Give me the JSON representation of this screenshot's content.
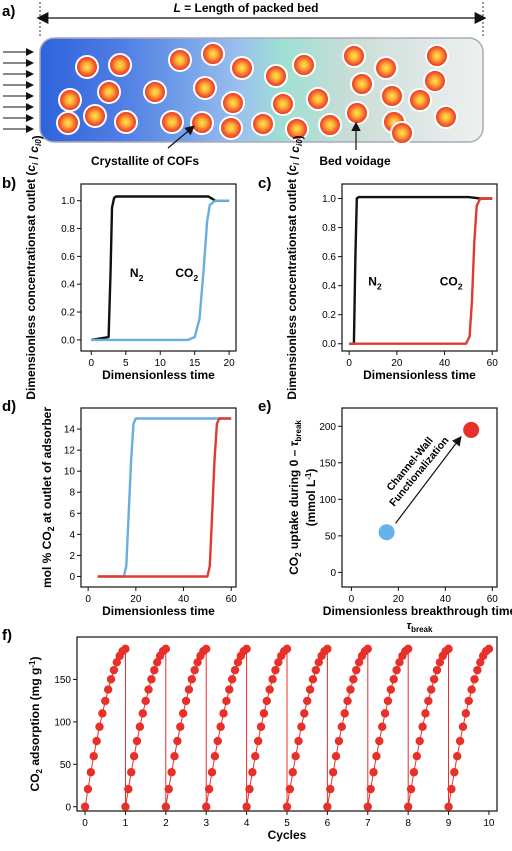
{
  "panel_labels": {
    "a": "a)",
    "b": "b)",
    "c": "c)",
    "d": "d)",
    "e": "e)",
    "f": "f)"
  },
  "bed": {
    "length_symbol": "L",
    "length_text": " = Length of packed bed",
    "crystallite_label": "Crystallite of COFs",
    "voidage_label": "Bed voidage"
  },
  "colors": {
    "black_curve": "#111111",
    "blue_curve": "#6aaee0",
    "red_curve": "#e03a33",
    "marker_red": "#e8302a",
    "marker_blue": "#66b3ea"
  },
  "chart_data": [
    {
      "id": "b",
      "type": "line",
      "ylabel": "Dimensionless concentrations at outlet (c_i / c_i0)",
      "xlabel": "Dimensionless time",
      "xticks": [
        "0",
        "5",
        "10",
        "15",
        "20"
      ],
      "yticks": [
        "0.0",
        "0.2",
        "0.4",
        "0.6",
        "0.8",
        "1.0"
      ],
      "xlim": [
        -1.5,
        21
      ],
      "ylim": [
        -0.08,
        1.12
      ],
      "series": [
        {
          "name": "N₂",
          "color": "#111111",
          "x": [
            0,
            2.5,
            2.8,
            3.0,
            3.3,
            3.6,
            5,
            15,
            17,
            18,
            19,
            20
          ],
          "y": [
            0,
            0.02,
            0.5,
            0.95,
            1.02,
            1.03,
            1.03,
            1.03,
            1.03,
            1.0,
            1.0,
            1.0
          ]
        },
        {
          "name": "CO₂",
          "color": "#6aaee0",
          "x": [
            0,
            14,
            15,
            15.7,
            16.3,
            16.8,
            17.2,
            18,
            20
          ],
          "y": [
            0,
            0,
            0.02,
            0.15,
            0.5,
            0.85,
            0.97,
            1.0,
            1.0
          ]
        }
      ],
      "annotations": [
        {
          "sub": "N",
          "subscript": "2",
          "x": 5.6,
          "y": 0.45
        },
        {
          "sub": "CO",
          "subscript": "2",
          "x": 12.2,
          "y": 0.45
        }
      ]
    },
    {
      "id": "c",
      "type": "line",
      "ylabel": "Dimensionless concentrations at outlet (c_i / c_i0)",
      "xlabel": "Dimensionless time",
      "xticks": [
        "0",
        "20",
        "40",
        "60"
      ],
      "yticks": [
        "0.0",
        "0.2",
        "0.4",
        "0.6",
        "0.8",
        "1.0"
      ],
      "xlim": [
        -3,
        62
      ],
      "ylim": [
        -0.05,
        1.1
      ],
      "series": [
        {
          "name": "N₂",
          "color": "#111111",
          "x": [
            0,
            2,
            2.6,
            3.2,
            4,
            10,
            30,
            50,
            55,
            60
          ],
          "y": [
            0,
            0,
            0.6,
            1.0,
            1.01,
            1.01,
            1.01,
            1.01,
            1.0,
            1.0
          ]
        },
        {
          "name": "CO₂",
          "color": "#e03a33",
          "x": [
            0,
            49,
            50.5,
            51.5,
            52.5,
            53.5,
            55,
            60
          ],
          "y": [
            0,
            0,
            0.05,
            0.3,
            0.7,
            0.95,
            1.0,
            1.0
          ]
        }
      ],
      "annotations": [
        {
          "sub": "N",
          "subscript": "2",
          "x": 8,
          "y": 0.4
        },
        {
          "sub": "CO",
          "subscript": "2",
          "x": 38,
          "y": 0.4
        }
      ]
    },
    {
      "id": "d",
      "type": "line",
      "ylabel": "mol % CO2 at outlet of adsorber",
      "xlabel": "Dimensionless time",
      "xticks": [
        "0",
        "20",
        "40",
        "60"
      ],
      "yticks": [
        "0",
        "2",
        "4",
        "6",
        "8",
        "10",
        "12",
        "14"
      ],
      "xlim": [
        -3,
        62
      ],
      "ylim": [
        -1,
        16
      ],
      "series": [
        {
          "color": "#6aaee0",
          "x": [
            4,
            15,
            16,
            17,
            18,
            19,
            20,
            60
          ],
          "y": [
            0,
            0,
            1,
            6,
            11,
            14.5,
            15,
            15
          ]
        },
        {
          "color": "#e03a33",
          "x": [
            4,
            50,
            51,
            52,
            53,
            54,
            55,
            60
          ],
          "y": [
            0,
            0,
            1,
            6,
            11,
            14.5,
            15,
            15
          ]
        }
      ]
    },
    {
      "id": "e",
      "type": "scatter",
      "ylabel": "CO2 uptake during 0 – τ_break (mmol L^-1)",
      "xlabel": "Dimensionless breakthrough time",
      "xlabel_symbol": "τ",
      "xlabel_symbol_sub": "break",
      "xticks": [
        "0",
        "20",
        "40",
        "60"
      ],
      "yticks": [
        "0",
        "50",
        "100",
        "150",
        "200"
      ],
      "xlim": [
        -4,
        62
      ],
      "ylim": [
        -20,
        225
      ],
      "points": [
        {
          "x": 15,
          "y": 55,
          "color": "#66b3ea"
        },
        {
          "x": 51,
          "y": 195,
          "color": "#e8302a"
        }
      ],
      "arrow_label_line1": "Channel-Wall",
      "arrow_label_line2": "Functionalization"
    },
    {
      "id": "f",
      "type": "scatter",
      "ylabel": "CO2 adsorption (mg g^-1)",
      "xlabel": "Cycles",
      "xticks": [
        "0",
        "1",
        "2",
        "3",
        "4",
        "5",
        "6",
        "7",
        "8",
        "9",
        "10"
      ],
      "yticks": [
        "0",
        "50",
        "100",
        "150"
      ],
      "xlim": [
        -0.2,
        10.2
      ],
      "ylim": [
        -5,
        200
      ],
      "cycles": 10,
      "max_value": 186,
      "points_per_cycle": 14
    }
  ]
}
